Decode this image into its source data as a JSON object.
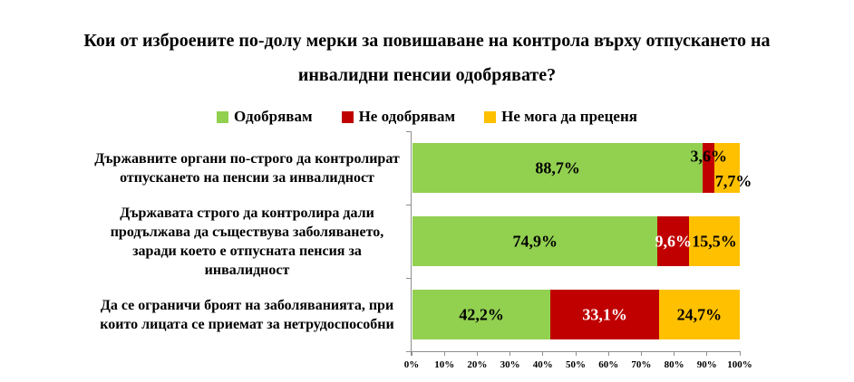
{
  "chart_data": {
    "type": "bar",
    "variant": "horizontal-stacked",
    "title": "Кои от изброените по-долу мерки за повишаване на контрола върху отпускането на инвалидни пенсии одобрявате?",
    "categories": [
      "Държавните органи по-строго да контролират отпускането на пенсии за инвалидност",
      "Държавата строго да контролира дали продължава да съществува заболяването, заради което е отпусната пенсия за инвалидност",
      "Да се ограничи броят на  заболяванията, при които лицата се приемат за нетрудоспособни"
    ],
    "series": [
      {
        "name": "Одобрявам",
        "color": "#92D050",
        "values": [
          88.7,
          74.9,
          42.2
        ],
        "value_labels": [
          "88,7%",
          "74,9%",
          "42,2%"
        ],
        "label_colors": [
          "#000000",
          "#000000",
          "#000000"
        ]
      },
      {
        "name": "Не одобрявам",
        "color": "#C00000",
        "values": [
          3.6,
          9.6,
          33.1
        ],
        "value_labels": [
          "3,6%",
          "9,6%",
          "33,1%"
        ],
        "label_colors": [
          "#000000",
          "#ffffff",
          "#ffffff"
        ]
      },
      {
        "name": "Не мога да преценя",
        "color": "#FFC000",
        "values": [
          7.7,
          15.5,
          24.7
        ],
        "value_labels": [
          "7,7%",
          "15,5%",
          "24,7%"
        ],
        "label_colors": [
          "#000000",
          "#000000",
          "#000000"
        ]
      }
    ],
    "x_ticks": [
      "0%",
      "10%",
      "20%",
      "30%",
      "40%",
      "50%",
      "60%",
      "70%",
      "80%",
      "90%",
      "100%"
    ],
    "xlim": [
      0,
      100
    ],
    "legend_position": "top",
    "grid": false,
    "axis_color": "#8e8e8e",
    "background": "#ffffff"
  }
}
